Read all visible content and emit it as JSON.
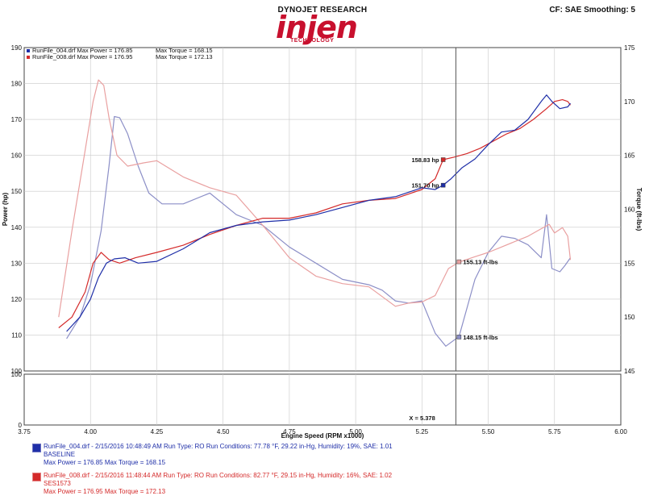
{
  "header": {
    "brand": "DYNOJET RESEARCH",
    "logo_word": "injen",
    "logo_sub": "TECHNOLOGY",
    "cf_readout": "CF: SAE  Smoothing: 5"
  },
  "colors": {
    "run1": "#1f2fa8",
    "run2": "#d42a2a",
    "run1_light": "#8c8fc7",
    "run2_light": "#e9a0a0"
  },
  "chart_data": {
    "type": "line",
    "xlabel": "Engine Speed (RPM x1000)",
    "ylabel": "Power (hp)",
    "y2label": "Torque (ft-lbs)",
    "xlim": [
      3.75,
      6.0
    ],
    "ylim": [
      100,
      190
    ],
    "y2lim": [
      145,
      175
    ],
    "xticks": [
      "3.75",
      "4.00",
      "4.25",
      "4.50",
      "4.75",
      "5.00",
      "5.25",
      "5.50",
      "5.75",
      "6.00"
    ],
    "yticks": [
      "100",
      "110",
      "120",
      "130",
      "140",
      "150",
      "160",
      "170",
      "180",
      "190"
    ],
    "y2ticks": [
      "145",
      "150",
      "155",
      "160",
      "165",
      "170",
      "175"
    ],
    "lower_ylim": [
      0,
      100
    ],
    "lower_yticks": [
      "0",
      "100"
    ],
    "cursor_label": "X = 5.378",
    "cursor_x": 5.378,
    "legend": [
      {
        "file": "RunFile_004.drf",
        "power": "Max Power = 176.85",
        "torque": "Max Torque = 168.15"
      },
      {
        "file": "RunFile_008.drf",
        "power": "Max Power = 176.95",
        "torque": "Max Torque = 172.13"
      }
    ],
    "markers": [
      {
        "label": "158.83 hp",
        "x": 5.33,
        "y": 158.8,
        "axis": "power",
        "series": 1
      },
      {
        "label": "151.70 hp",
        "x": 5.33,
        "y": 151.7,
        "axis": "power",
        "series": 0
      },
      {
        "label": "155.13 ft-lbs",
        "x": 5.39,
        "y": 155.13,
        "axis": "torque",
        "series": 1
      },
      {
        "label": "148.15 ft-lbs",
        "x": 5.39,
        "y": 148.15,
        "axis": "torque",
        "series": 0
      }
    ],
    "series": [
      {
        "name": "RunFile_004.drf Power",
        "axis": "power",
        "x": [
          3.91,
          3.96,
          4.0,
          4.03,
          4.06,
          4.09,
          4.13,
          4.18,
          4.25,
          4.35,
          4.45,
          4.55,
          4.65,
          4.75,
          4.85,
          4.95,
          5.05,
          5.15,
          5.25,
          5.3,
          5.33,
          5.36,
          5.4,
          5.45,
          5.5,
          5.55,
          5.6,
          5.65,
          5.7,
          5.72,
          5.74,
          5.77,
          5.8,
          5.81
        ],
        "y": [
          111,
          115,
          120,
          126,
          130,
          131.2,
          131.5,
          130,
          130.5,
          134,
          138.5,
          140.5,
          141.5,
          142,
          143.5,
          145.5,
          147.5,
          148.5,
          151,
          150.5,
          151.7,
          153.5,
          156.5,
          159,
          163,
          166.5,
          167,
          170,
          175,
          176.8,
          175,
          173,
          173.5,
          174.5
        ]
      },
      {
        "name": "RunFile_008.drf Power",
        "axis": "power",
        "x": [
          3.88,
          3.93,
          3.98,
          4.01,
          4.04,
          4.07,
          4.11,
          4.17,
          4.25,
          4.35,
          4.45,
          4.55,
          4.65,
          4.75,
          4.85,
          4.95,
          5.05,
          5.15,
          5.25,
          5.3,
          5.33,
          5.37,
          5.42,
          5.47,
          5.52,
          5.57,
          5.62,
          5.67,
          5.72,
          5.75,
          5.78,
          5.8,
          5.81
        ],
        "y": [
          112,
          115,
          122,
          130,
          133,
          131,
          130,
          131.5,
          133,
          135,
          138,
          140.5,
          142.5,
          142.5,
          144,
          146.5,
          147.5,
          148,
          150.5,
          153.5,
          158.8,
          159.5,
          160.5,
          162,
          164,
          166,
          167.5,
          170,
          173,
          175,
          175.5,
          175,
          174
        ]
      },
      {
        "name": "RunFile_004.drf Torque",
        "axis": "torque",
        "x": [
          3.91,
          3.96,
          4.0,
          4.04,
          4.07,
          4.09,
          4.11,
          4.14,
          4.18,
          4.22,
          4.27,
          4.35,
          4.45,
          4.55,
          4.65,
          4.75,
          4.85,
          4.95,
          5.05,
          5.1,
          5.15,
          5.2,
          5.25,
          5.3,
          5.34,
          5.39,
          5.45,
          5.5,
          5.55,
          5.6,
          5.65,
          5.7,
          5.72,
          5.74,
          5.77,
          5.79,
          5.81
        ],
        "y": [
          148,
          150,
          153,
          158,
          164,
          168.6,
          168.5,
          167,
          164,
          161.5,
          160.5,
          160.5,
          161.5,
          159.5,
          158.5,
          156.5,
          155,
          153.5,
          153,
          152.5,
          151.5,
          151.3,
          151.5,
          148.5,
          147.3,
          148.2,
          153.5,
          156,
          157.5,
          157.3,
          156.7,
          155.5,
          159.5,
          154.5,
          154.2,
          154.8,
          155.5
        ]
      },
      {
        "name": "RunFile_008.drf Torque",
        "axis": "torque",
        "x": [
          3.88,
          3.93,
          3.97,
          4.01,
          4.03,
          4.05,
          4.07,
          4.1,
          4.14,
          4.2,
          4.25,
          4.35,
          4.45,
          4.55,
          4.65,
          4.75,
          4.85,
          4.95,
          5.05,
          5.15,
          5.2,
          5.25,
          5.3,
          5.35,
          5.39,
          5.45,
          5.5,
          5.55,
          5.6,
          5.65,
          5.7,
          5.73,
          5.75,
          5.78,
          5.8,
          5.81
        ],
        "y": [
          150,
          158,
          164,
          170,
          172,
          171.5,
          168.5,
          165,
          164,
          164.3,
          164.5,
          163,
          162,
          161.3,
          158.5,
          155.5,
          153.8,
          153.1,
          152.8,
          151,
          151.3,
          151.4,
          152,
          154.5,
          155.1,
          155.6,
          156,
          156.5,
          157,
          157.5,
          158.2,
          158.6,
          157.8,
          158.3,
          157.5,
          155.3
        ]
      }
    ]
  },
  "runs": [
    {
      "line1": "RunFile_004.drf - 2/15/2016 10:48:49 AM  Run Type: RO  Run Conditions: 77.78 °F, 29.22 in-Hg,  Humidity:  19%,  SAE: 1.01",
      "line2": "BASELINE",
      "line3": "Max Power = 176.85  Max Torque = 168.15",
      "color_key": "run1"
    },
    {
      "line1": "RunFile_008.drf - 2/15/2016 11:48:44 AM  Run Type: RO  Run Conditions: 82.77 °F, 29.15 in-Hg,  Humidity:  16%,  SAE: 1.02",
      "line2": "SES1573",
      "line3": "Max Power = 176.95  Max Torque = 172.13",
      "color_key": "run2"
    }
  ]
}
